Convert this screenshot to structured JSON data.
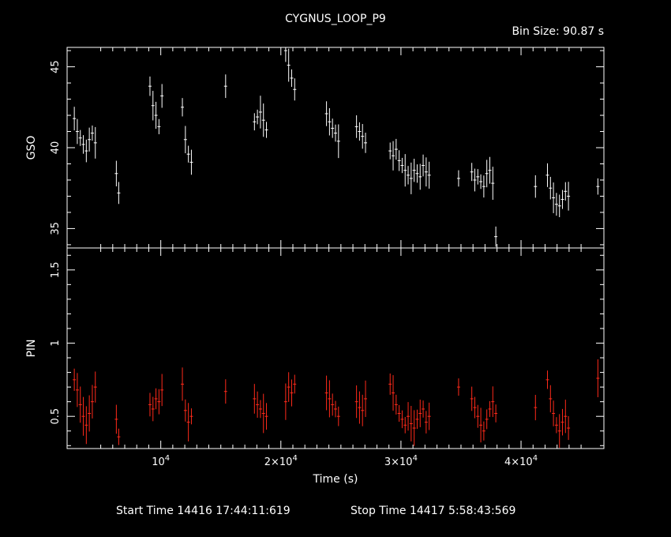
{
  "title": "CYGNUS_LOOP_P9",
  "bin_size": "Bin Size: 90.87 s",
  "start_time": "Start Time 14416 17:44:11:619",
  "stop_time": "Stop Time 14417  5:58:43:569",
  "colors": {
    "background": "#000000",
    "axes": "#ffffff",
    "gso": "#ffffff",
    "pin": "#ff2a1a"
  },
  "chart_data": [
    {
      "type": "scatter",
      "panel": "top",
      "ylabel": "GSO",
      "xlim": [
        2200,
        46900
      ],
      "ylim": [
        33.8,
        46.2
      ],
      "yticks": [
        35,
        40,
        45
      ],
      "ytick_labels": [
        "35",
        "40",
        "45"
      ],
      "series": [
        {
          "color": "#ffffff",
          "x": [
            2800,
            3050,
            3300,
            3550,
            3800,
            4050,
            4300,
            4550,
            6300,
            6500,
            9100,
            9350,
            9600,
            9850,
            10100,
            11800,
            12050,
            12300,
            12550,
            15400,
            17800,
            18050,
            18300,
            18550,
            18800,
            20400,
            20650,
            20900,
            21150,
            23800,
            24050,
            24300,
            24550,
            24800,
            26300,
            26550,
            26800,
            27050,
            29100,
            29350,
            29600,
            29850,
            30100,
            30350,
            30600,
            30850,
            31100,
            31350,
            31600,
            31850,
            32100,
            32350,
            34800,
            35900,
            36150,
            36400,
            36650,
            36900,
            37150,
            37400,
            37650,
            37900,
            41200,
            42200,
            42450,
            42700,
            42950,
            43200,
            43450,
            43700,
            43950,
            46400
          ],
          "y": [
            41.8,
            41.0,
            40.6,
            40.2,
            39.8,
            40.5,
            40.9,
            40.3,
            38.4,
            37.2,
            43.8,
            42.6,
            42.0,
            41.3,
            43.2,
            42.5,
            40.5,
            39.6,
            39.1,
            43.8,
            41.6,
            41.9,
            42.2,
            41.7,
            41.1,
            46.0,
            45.1,
            44.3,
            43.6,
            42.1,
            41.6,
            41.2,
            40.9,
            40.4,
            41.3,
            41.0,
            40.7,
            40.3,
            39.8,
            39.5,
            39.9,
            39.2,
            38.9,
            38.6,
            38.3,
            38.1,
            38.6,
            38.4,
            38.2,
            38.9,
            38.5,
            38.3,
            38.1,
            38.5,
            38.0,
            38.2,
            37.9,
            37.6,
            38.4,
            38.6,
            37.8,
            34.5,
            37.6,
            38.3,
            37.5,
            36.9,
            36.5,
            36.4,
            36.8,
            37.3,
            37.0,
            37.6
          ]
        }
      ]
    },
    {
      "type": "scatter",
      "panel": "bottom",
      "ylabel": "PIN",
      "xlabel": "Time (s)",
      "xlim": [
        2200,
        46900
      ],
      "ylim": [
        0.28,
        1.65
      ],
      "yticks": [
        0.5,
        1,
        1.5
      ],
      "ytick_labels": [
        "0.5",
        "1",
        "1.5"
      ],
      "xticks": [
        10000,
        20000,
        30000,
        40000
      ],
      "xtick_base": [
        "10",
        "2×10",
        "3×10",
        "4×10"
      ],
      "xtick_exp": "4",
      "series": [
        {
          "color": "#ff2a1a",
          "x": [
            2800,
            3050,
            3300,
            3550,
            3800,
            4050,
            4300,
            4550,
            6300,
            6500,
            9100,
            9350,
            9600,
            9850,
            10100,
            11800,
            12050,
            12300,
            12550,
            15400,
            17800,
            18050,
            18300,
            18550,
            18800,
            20400,
            20650,
            20900,
            21150,
            23800,
            24050,
            24300,
            24550,
            24800,
            26300,
            26550,
            26800,
            27050,
            29100,
            29350,
            29600,
            29850,
            30100,
            30350,
            30600,
            30850,
            31100,
            31350,
            31600,
            31850,
            32100,
            32350,
            34800,
            35900,
            36150,
            36400,
            36650,
            36900,
            37150,
            37400,
            37650,
            37900,
            41200,
            42200,
            42450,
            42700,
            42950,
            43200,
            43450,
            43700,
            43950,
            46400
          ],
          "y": [
            0.75,
            0.68,
            0.58,
            0.5,
            0.44,
            0.52,
            0.6,
            0.7,
            0.48,
            0.36,
            0.58,
            0.55,
            0.62,
            0.6,
            0.68,
            0.72,
            0.54,
            0.46,
            0.5,
            0.67,
            0.62,
            0.58,
            0.55,
            0.52,
            0.5,
            0.6,
            0.7,
            0.66,
            0.72,
            0.66,
            0.62,
            0.58,
            0.55,
            0.5,
            0.6,
            0.56,
            0.54,
            0.62,
            0.72,
            0.66,
            0.58,
            0.52,
            0.48,
            0.44,
            0.5,
            0.45,
            0.42,
            0.48,
            0.52,
            0.55,
            0.46,
            0.5,
            0.7,
            0.62,
            0.56,
            0.5,
            0.44,
            0.4,
            0.48,
            0.55,
            0.6,
            0.52,
            0.56,
            0.75,
            0.62,
            0.52,
            0.44,
            0.4,
            0.46,
            0.5,
            0.42,
            0.76
          ]
        }
      ]
    }
  ]
}
